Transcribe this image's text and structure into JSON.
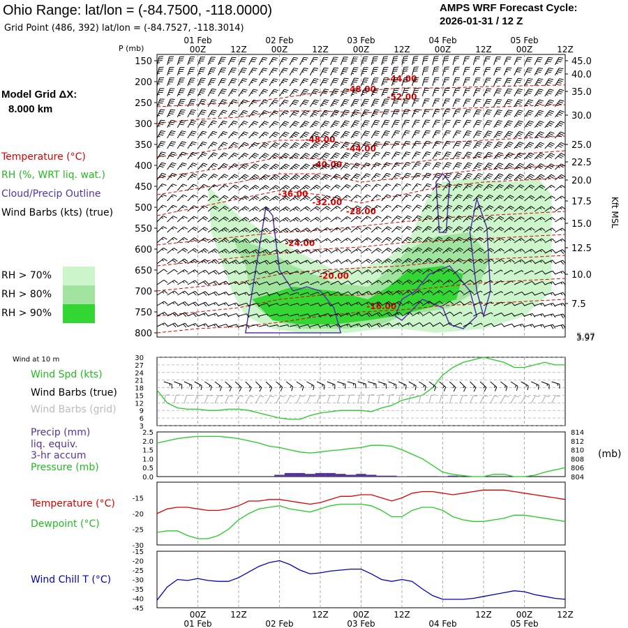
{
  "header": {
    "title": "Ohio Range:  lat/lon = (-84.7500, -118.0000)",
    "grid_point": "Grid Point (486, 392) lat/lon = (-84.7527, -118.3014)",
    "product": "AMPS WRF Forecast Cycle:",
    "cycle": "2026-01-31 / 12  Z"
  },
  "left_panel": {
    "model_grid_label": "Model Grid ΔX:",
    "model_grid_value": "8.000 km",
    "legend_temperature": "Temperature (°C)",
    "legend_rh": "RH (%, WRT liq. wat.)",
    "legend_cloud": "Cloud/Precip Outline",
    "legend_wind": "Wind Barbs (kts) (true)",
    "rh_bins": [
      {
        "label": "RH > 70%",
        "color": "#ccf5cc"
      },
      {
        "label": "RH > 80%",
        "color": "#a0e4a0"
      },
      {
        "label": "RH > 90%",
        "color": "#33d633"
      }
    ]
  },
  "colors": {
    "temperature": "#dd0000",
    "rh": "#22bb22",
    "cloud": "#5533aa",
    "dewpoint": "#22cc22",
    "windchill": "#0000bb",
    "precip": "#553399",
    "grid": "#999999",
    "grid_barbs": "#aaaaaa"
  },
  "time_axis": {
    "top_day_labels": [
      "01 Feb",
      "02 Feb",
      "03 Feb",
      "04 Feb",
      "05 Feb"
    ],
    "hour_labels": [
      "00Z",
      "12Z",
      "00Z",
      "12Z",
      "00Z",
      "12Z",
      "00Z",
      "12Z",
      "00Z",
      "12Z"
    ],
    "bottom_hour_labels": [
      "00Z",
      "12Z",
      "12Z",
      "00Z",
      "12Z",
      "12Z",
      "00Z",
      "12Z"
    ],
    "bottom_day_labels": [
      "01 Feb",
      "02 Feb",
      "03 Feb",
      "04 Feb",
      "05 Feb"
    ]
  },
  "chart_data": [
    {
      "id": "cross_section",
      "type": "contour",
      "ylabel": "P (mb)",
      "y2label": "Kft MSL",
      "pressure_ticks": [
        "150",
        "200",
        "250",
        "300",
        "350",
        "400",
        "450",
        "500",
        "550",
        "600",
        "650",
        "700",
        "750",
        "800"
      ],
      "height_ticks": [
        "45.0",
        "40.0",
        "35.0",
        "30.0",
        "25.0",
        "22.5",
        "20.0",
        "17.5",
        "15.0",
        "12.5",
        "10.0",
        "7.5"
      ],
      "surface_labels": [
        "5.07",
        "3.97"
      ],
      "ylim": [
        150,
        800
      ],
      "temperature_contour_labels": [
        {
          "text": "-44.00",
          "hour": 60,
          "p": 193
        },
        {
          "text": "-48.00",
          "hour": 48,
          "p": 218
        },
        {
          "text": "-52.00",
          "hour": 60,
          "p": 237
        },
        {
          "text": "-48.00",
          "hour": 36,
          "p": 338
        },
        {
          "text": "-44.00",
          "hour": 48,
          "p": 360
        },
        {
          "text": "-40.00",
          "hour": 38,
          "p": 398
        },
        {
          "text": "-36.00",
          "hour": 28,
          "p": 468
        },
        {
          "text": "-32.00",
          "hour": 38,
          "p": 488
        },
        {
          "text": "-28.00",
          "hour": 48,
          "p": 510
        },
        {
          "text": "-24.00",
          "hour": 30,
          "p": 586
        },
        {
          "text": "-20.00",
          "hour": 40,
          "p": 664
        },
        {
          "text": "-16.00",
          "hour": 54,
          "p": 737
        }
      ]
    },
    {
      "id": "wind_speed",
      "type": "line",
      "title": "Wind at 10 m",
      "label_speed": "Wind Spd (kts)",
      "label_barbs_true": "Wind Barbs (true)",
      "label_barbs_grid": "Wind Barbs (grid)",
      "ylim": [
        3,
        30
      ],
      "yticks": [
        "30",
        "27",
        "24",
        "21",
        "18",
        "15",
        "12",
        "9",
        "6",
        "3"
      ],
      "x": [
        -12,
        -9,
        -6,
        -3,
        0,
        3,
        6,
        9,
        12,
        15,
        18,
        21,
        24,
        27,
        30,
        33,
        36,
        39,
        42,
        45,
        48,
        51,
        54,
        57,
        60,
        63,
        66,
        69,
        72,
        75,
        78,
        81,
        84,
        87,
        90,
        93,
        96,
        99,
        102,
        105,
        108
      ],
      "values": [
        17,
        12,
        10,
        9.5,
        9.5,
        9,
        9,
        9.5,
        9.5,
        9,
        8,
        7,
        6,
        5.5,
        5.5,
        7,
        8,
        8.5,
        9,
        9,
        9,
        8.5,
        10,
        11,
        13,
        14,
        15,
        18,
        23,
        26,
        28,
        29,
        30,
        29,
        28,
        26,
        26,
        27,
        28,
        27,
        27
      ]
    },
    {
      "id": "precip_pressure",
      "type": "line+bar",
      "label_precip": "Precip (mm)",
      "label_liq": "liq. equiv.",
      "label_accum": "3-hr accum",
      "label_pressure": "Pressure (mb)",
      "unit_right": "(mb)",
      "yticks_left": [
        "2.5",
        "2.0",
        "1.5",
        "1.0",
        "0.5",
        "0.0"
      ],
      "yticks_right": [
        "814",
        "812",
        "810",
        "808",
        "806",
        "804"
      ],
      "precip_ylim": [
        0,
        2.5
      ],
      "pressure_ylim": [
        804,
        814
      ],
      "precip_x": [
        24,
        27,
        30,
        33,
        36,
        39,
        42,
        45,
        48,
        51,
        54,
        57,
        60,
        72,
        75
      ],
      "precip_values": [
        0.1,
        0.2,
        0.2,
        0.15,
        0.2,
        0.2,
        0.15,
        0.1,
        0.15,
        0.1,
        0.05,
        0.05,
        0.02,
        0.02,
        0.05
      ],
      "pressure_x": [
        -12,
        -9,
        -6,
        -3,
        0,
        3,
        6,
        9,
        12,
        15,
        18,
        21,
        24,
        27,
        30,
        33,
        36,
        39,
        42,
        45,
        48,
        51,
        54,
        57,
        60,
        63,
        66,
        69,
        72,
        75,
        78,
        81,
        84,
        87,
        90,
        93,
        96,
        99,
        102,
        105,
        108
      ],
      "pressure_values": [
        811.5,
        812,
        812.5,
        812.8,
        813,
        813,
        813,
        812.8,
        812.5,
        812,
        811.5,
        810.8,
        810.5,
        810,
        809.5,
        809.3,
        809.5,
        809.8,
        810,
        810.3,
        810.5,
        811,
        811,
        810.8,
        810,
        809,
        808,
        806.5,
        805,
        804.5,
        804.2,
        804,
        804,
        804.5,
        804.5,
        804,
        804,
        804.3,
        805,
        805.5,
        806
      ]
    },
    {
      "id": "temperature_dewpoint",
      "type": "line",
      "label_temperature": "Temperature (°C)",
      "label_dewpoint": "Dewpoint (°C)",
      "ylim": [
        -30,
        -10
      ],
      "yticks": [
        "-15",
        "-20",
        "-25",
        "-30"
      ],
      "x": [
        -12,
        -9,
        -6,
        -3,
        0,
        3,
        6,
        9,
        12,
        15,
        18,
        21,
        24,
        27,
        30,
        33,
        36,
        39,
        42,
        45,
        48,
        51,
        54,
        57,
        60,
        63,
        66,
        69,
        72,
        75,
        78,
        81,
        84,
        87,
        90,
        93,
        96,
        99,
        102,
        105,
        108
      ],
      "temperature": [
        -20,
        -18.5,
        -18,
        -18,
        -18.5,
        -19,
        -19,
        -18.5,
        -17.5,
        -16,
        -16,
        -15.5,
        -15.5,
        -16,
        -16.5,
        -17,
        -16.5,
        -15.5,
        -14.5,
        -14.5,
        -14,
        -14,
        -15,
        -16,
        -15,
        -13.5,
        -13,
        -13,
        -13.5,
        -14,
        -13.5,
        -13,
        -12.5,
        -12.5,
        -12.5,
        -13,
        -13.5,
        -14,
        -14.5,
        -15,
        -15.5
      ],
      "dewpoint": [
        -26,
        -25.5,
        -25.5,
        -27,
        -28,
        -28,
        -27,
        -25,
        -22,
        -20,
        -18.5,
        -18,
        -17.5,
        -18.5,
        -19,
        -19.5,
        -18.5,
        -17.5,
        -17,
        -17,
        -17,
        -17.5,
        -19,
        -21,
        -21,
        -19,
        -18,
        -18,
        -19,
        -21,
        -22,
        -22.5,
        -22.5,
        -22,
        -21.5,
        -20.5,
        -20.5,
        -21,
        -21.5,
        -22,
        -22.5
      ]
    },
    {
      "id": "wind_chill",
      "type": "line",
      "label": "Wind Chill T (°C)",
      "ylim": [
        -45,
        -15
      ],
      "yticks": [
        "-15",
        "-20",
        "-25",
        "-30",
        "-35",
        "-40",
        "-45"
      ],
      "x": [
        -12,
        -9,
        -6,
        -3,
        0,
        3,
        6,
        9,
        12,
        15,
        18,
        21,
        24,
        27,
        30,
        33,
        36,
        39,
        42,
        45,
        48,
        51,
        54,
        57,
        60,
        63,
        66,
        69,
        72,
        75,
        78,
        81,
        84,
        87,
        90,
        93,
        96,
        99,
        102,
        105,
        108
      ],
      "values": [
        -41,
        -34,
        -30,
        -30.5,
        -29.5,
        -30.5,
        -31,
        -31,
        -29,
        -26,
        -23,
        -21,
        -20,
        -22,
        -25,
        -27,
        -26.5,
        -25.5,
        -25,
        -24.5,
        -24.5,
        -27,
        -30,
        -31,
        -30,
        -31,
        -35,
        -38.5,
        -40.5,
        -40.5,
        -40.5,
        -40,
        -39,
        -38,
        -37,
        -36,
        -36.5,
        -38,
        -39,
        -40,
        -40.5
      ]
    }
  ]
}
